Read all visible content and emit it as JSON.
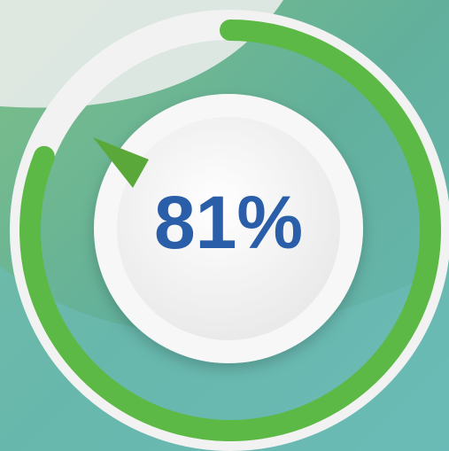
{
  "chart_data": {
    "type": "gauge",
    "values": [
      81
    ],
    "value_labels": [
      "81%"
    ],
    "ylim": [
      0,
      100
    ],
    "color": "#5cb946",
    "text_color": "#2a5ea8"
  }
}
